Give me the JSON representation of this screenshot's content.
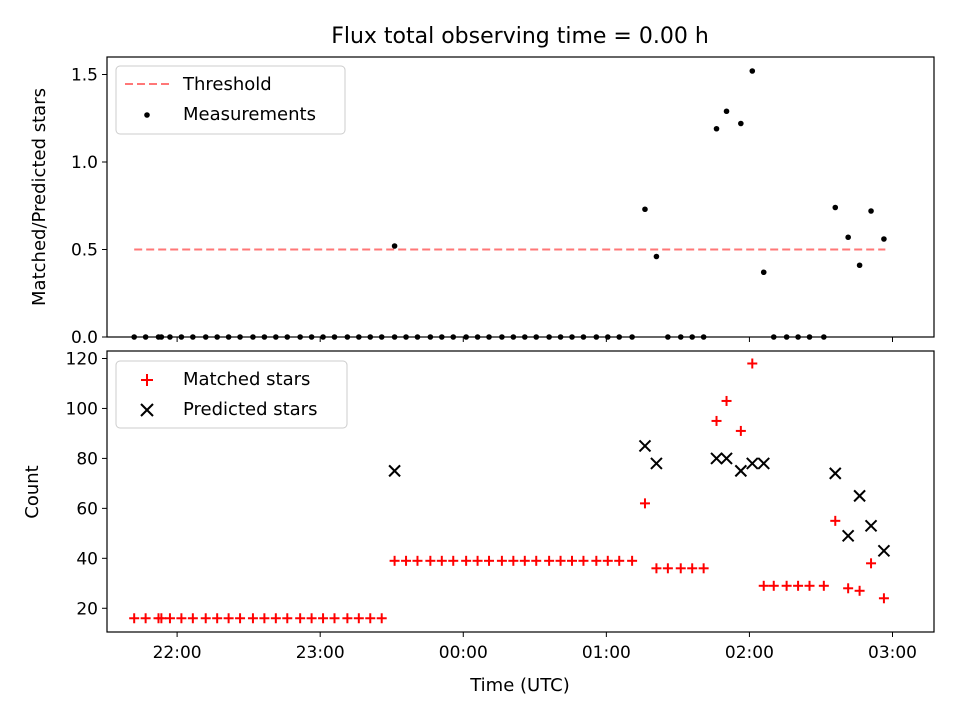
{
  "figure": {
    "title": "Flux total observing time = 0.00 h",
    "xlabel": "Time (UTC)",
    "xticks": [
      "22:00",
      "23:00",
      "00:00",
      "01:00",
      "02:00",
      "03:00"
    ]
  },
  "chart_data": [
    {
      "type": "scatter",
      "panel": "top",
      "ylabel": "Matched/Predicted stars",
      "ylim": [
        0,
        1.6
      ],
      "yticks": [
        "0.0",
        "0.5",
        "1.0",
        "1.5"
      ],
      "x_unit": "hours after 00:00 UTC",
      "xlim": [
        -2.49,
        3.29
      ],
      "legend_position": "upper-left",
      "threshold": {
        "name": "Threshold",
        "value": 0.5,
        "x_range": [
          -2.3,
          2.95
        ],
        "color": "#ff7777"
      },
      "series": [
        {
          "name": "Measurements",
          "color": "#000000",
          "points": [
            [
              -2.3,
              0
            ],
            [
              -2.22,
              0
            ],
            [
              -2.13,
              0
            ],
            [
              -2.11,
              0
            ],
            [
              -2.05,
              0
            ],
            [
              -1.97,
              0
            ],
            [
              -1.89,
              0
            ],
            [
              -1.8,
              0
            ],
            [
              -1.72,
              0
            ],
            [
              -1.64,
              0
            ],
            [
              -1.56,
              0
            ],
            [
              -1.47,
              0
            ],
            [
              -1.39,
              0
            ],
            [
              -1.31,
              0
            ],
            [
              -1.23,
              0
            ],
            [
              -1.14,
              0
            ],
            [
              -1.06,
              0
            ],
            [
              -0.98,
              0
            ],
            [
              -0.9,
              0
            ],
            [
              -0.81,
              0
            ],
            [
              -0.73,
              0
            ],
            [
              -0.65,
              0
            ],
            [
              -0.57,
              0
            ],
            [
              -0.48,
              0
            ],
            [
              -0.48,
              0.52
            ],
            [
              -0.4,
              0
            ],
            [
              -0.32,
              0
            ],
            [
              -0.23,
              0
            ],
            [
              -0.15,
              0
            ],
            [
              -0.07,
              0
            ],
            [
              0.02,
              0
            ],
            [
              0.1,
              0
            ],
            [
              0.18,
              0
            ],
            [
              0.27,
              0
            ],
            [
              0.35,
              0
            ],
            [
              0.43,
              0
            ],
            [
              0.51,
              0
            ],
            [
              0.6,
              0
            ],
            [
              0.68,
              0
            ],
            [
              0.76,
              0
            ],
            [
              0.84,
              0
            ],
            [
              0.93,
              0
            ],
            [
              1.01,
              0
            ],
            [
              1.09,
              0
            ],
            [
              1.18,
              0
            ],
            [
              1.27,
              0.73
            ],
            [
              1.35,
              0.46
            ],
            [
              1.43,
              0
            ],
            [
              1.52,
              0
            ],
            [
              1.6,
              0
            ],
            [
              1.68,
              0
            ],
            [
              1.77,
              1.19
            ],
            [
              1.84,
              1.29
            ],
            [
              1.94,
              1.22
            ],
            [
              2.02,
              1.52
            ],
            [
              2.1,
              0.37
            ],
            [
              2.17,
              0
            ],
            [
              2.26,
              0
            ],
            [
              2.34,
              0
            ],
            [
              2.42,
              0
            ],
            [
              2.52,
              0
            ],
            [
              2.6,
              0.74
            ],
            [
              2.69,
              0.57
            ],
            [
              2.77,
              0.41
            ],
            [
              2.85,
              0.72
            ],
            [
              2.94,
              0.56
            ]
          ]
        }
      ]
    },
    {
      "type": "scatter",
      "panel": "bottom",
      "ylabel": "Count",
      "ylim": [
        10.5,
        123
      ],
      "yticks": [
        "20",
        "40",
        "60",
        "80",
        "100",
        "120"
      ],
      "x_unit": "hours after 00:00 UTC",
      "xlim": [
        -2.49,
        3.29
      ],
      "legend_position": "upper-left",
      "series": [
        {
          "name": "Matched stars",
          "marker": "plus",
          "color": "#ff0000",
          "points": [
            [
              -2.3,
              16
            ],
            [
              -2.22,
              16
            ],
            [
              -2.13,
              16
            ],
            [
              -2.11,
              16
            ],
            [
              -2.05,
              16
            ],
            [
              -1.97,
              16
            ],
            [
              -1.89,
              16
            ],
            [
              -1.8,
              16
            ],
            [
              -1.72,
              16
            ],
            [
              -1.64,
              16
            ],
            [
              -1.56,
              16
            ],
            [
              -1.47,
              16
            ],
            [
              -1.39,
              16
            ],
            [
              -1.31,
              16
            ],
            [
              -1.23,
              16
            ],
            [
              -1.14,
              16
            ],
            [
              -1.06,
              16
            ],
            [
              -0.98,
              16
            ],
            [
              -0.9,
              16
            ],
            [
              -0.81,
              16
            ],
            [
              -0.73,
              16
            ],
            [
              -0.65,
              16
            ],
            [
              -0.57,
              16
            ],
            [
              -0.48,
              39
            ],
            [
              -0.4,
              39
            ],
            [
              -0.32,
              39
            ],
            [
              -0.23,
              39
            ],
            [
              -0.15,
              39
            ],
            [
              -0.07,
              39
            ],
            [
              0.02,
              39
            ],
            [
              0.1,
              39
            ],
            [
              0.18,
              39
            ],
            [
              0.27,
              39
            ],
            [
              0.35,
              39
            ],
            [
              0.43,
              39
            ],
            [
              0.51,
              39
            ],
            [
              0.6,
              39
            ],
            [
              0.68,
              39
            ],
            [
              0.76,
              39
            ],
            [
              0.84,
              39
            ],
            [
              0.93,
              39
            ],
            [
              1.01,
              39
            ],
            [
              1.09,
              39
            ],
            [
              1.18,
              39
            ],
            [
              1.27,
              62
            ],
            [
              1.35,
              36
            ],
            [
              1.43,
              36
            ],
            [
              1.52,
              36
            ],
            [
              1.6,
              36
            ],
            [
              1.68,
              36
            ],
            [
              1.77,
              95
            ],
            [
              1.84,
              103
            ],
            [
              1.94,
              91
            ],
            [
              2.02,
              118
            ],
            [
              2.1,
              29
            ],
            [
              2.17,
              29
            ],
            [
              2.26,
              29
            ],
            [
              2.34,
              29
            ],
            [
              2.42,
              29
            ],
            [
              2.52,
              29
            ],
            [
              2.6,
              55
            ],
            [
              2.69,
              28
            ],
            [
              2.77,
              27
            ],
            [
              2.85,
              38
            ],
            [
              2.94,
              24
            ]
          ]
        },
        {
          "name": "Predicted stars",
          "marker": "x",
          "color": "#000000",
          "points": [
            [
              -0.48,
              75
            ],
            [
              1.27,
              85
            ],
            [
              1.35,
              78
            ],
            [
              1.77,
              80
            ],
            [
              1.84,
              80
            ],
            [
              1.94,
              75
            ],
            [
              2.02,
              78
            ],
            [
              2.1,
              78
            ],
            [
              2.6,
              74
            ],
            [
              2.69,
              49
            ],
            [
              2.77,
              65
            ],
            [
              2.85,
              53
            ],
            [
              2.94,
              43
            ]
          ]
        }
      ]
    }
  ]
}
